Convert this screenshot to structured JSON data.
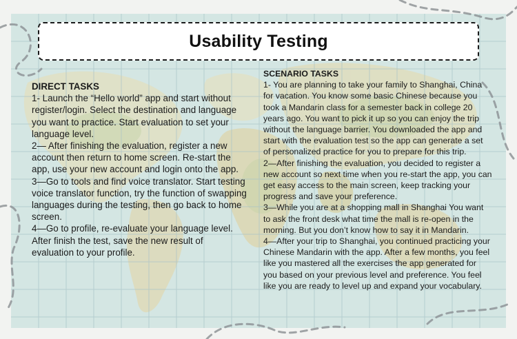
{
  "title": "Usability Testing",
  "direct_tasks": {
    "heading": "DIRECT TASKS",
    "items": [
      "1- Launch the “Hello world” app and start without register/login. Select the destination and language you want to practice. Start evaluation to set your language level.",
      "2— After finishing the evaluation, register a new account then return to home screen. Re-start the app, use your new account and login onto the app.",
      "3—Go to tools and find voice translator. Start testing voice translator function, try the function of swapping languages during the testing, then go back to home screen.",
      "4—Go to profile, re-evaluate your language level. After finish the test, save the new result of evaluation to your profile."
    ]
  },
  "scenario_tasks": {
    "heading": "SCENARIO TASKS",
    "items": [
      "1- You are planning to take your family to Shanghai, China for vacation. You know some basic Chinese because you took a Mandarin class for a semester back in college 20 years ago. You want to pick it up so you can enjoy the trip without the language barrier. You downloaded the app and start with the evaluation test so the app can generate a set of personalized practice for you to prepare for this trip.",
      "2—After finishing the evaluation, you decided to register a new account so next time when you re-start the app, you can get easy access to the main screen, keep tracking your progress and save your preference.",
      "3—While you are at a shopping mall in Shanghai You want to ask the front desk what time the mall is re-open in the morning. But you don’t know how to say it in Mandarin.",
      "4—After your trip to Shanghai, you continued practicing your Chinese Mandarin with the app. After a few months, you feel like you mastered all the exercises the app generated for you based on your previous level and preference. You feel like you are ready to level up and expand your vocabulary."
    ]
  }
}
